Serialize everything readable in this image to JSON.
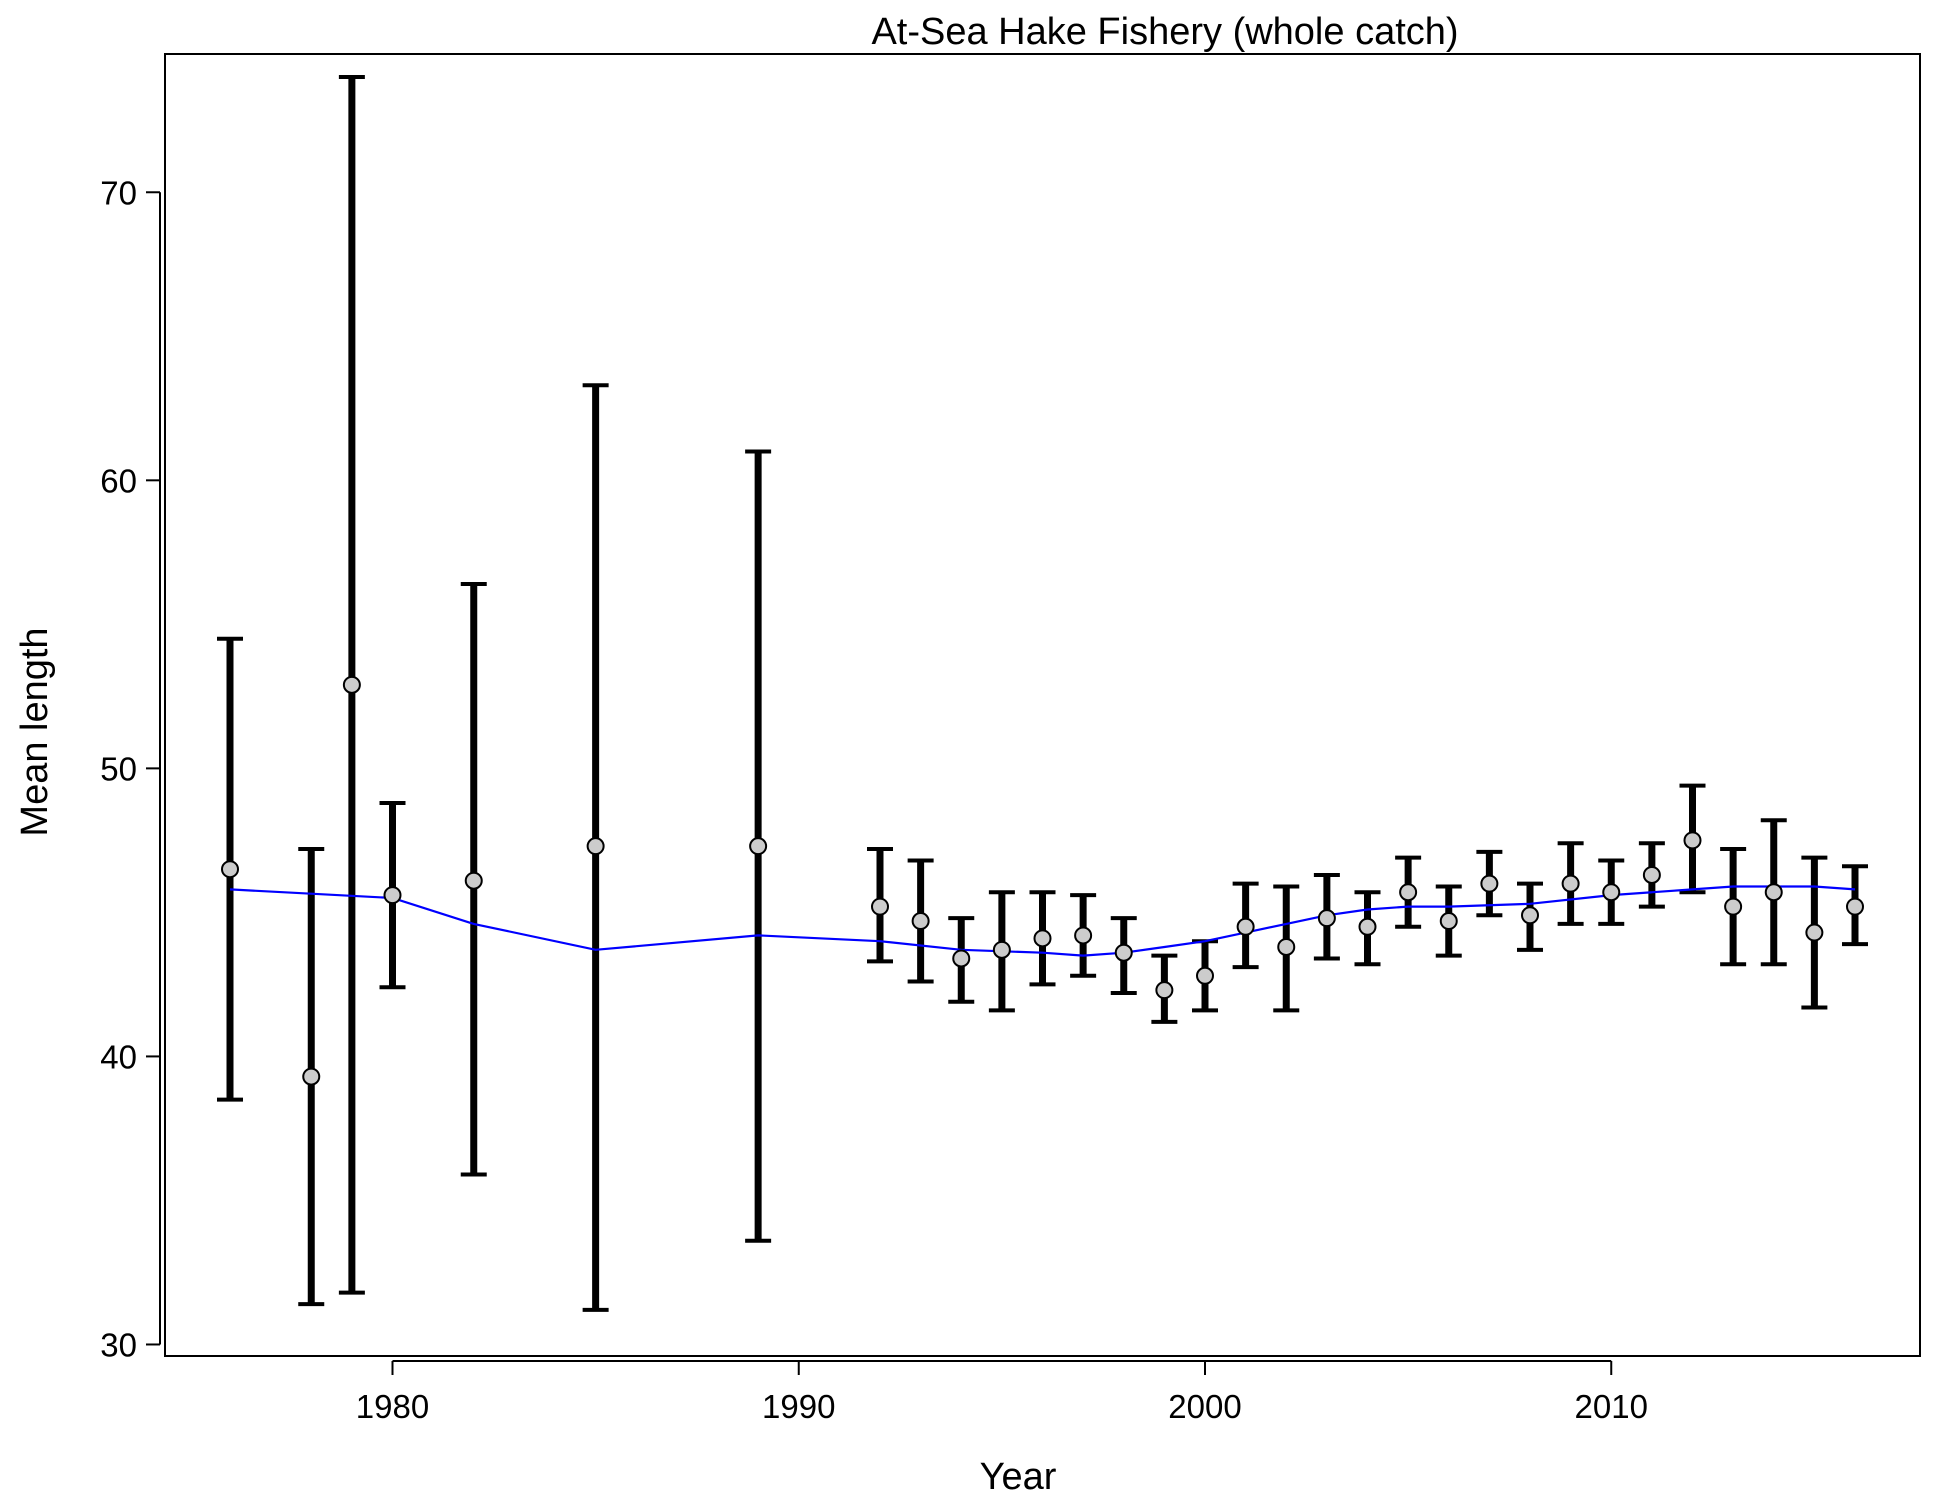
{
  "chart_data": {
    "type": "scatter",
    "title": "At-Sea Hake Fishery (whole catch)",
    "xlabel": "Year",
    "ylabel": "Mean length",
    "xlim": [
      1974.4,
      2017.6
    ],
    "ylim": [
      29.6,
      74.8
    ],
    "xticks": [
      1980,
      1990,
      2000,
      2010
    ],
    "yticks": [
      30,
      40,
      50,
      60,
      70
    ],
    "grid": false,
    "legend": "none",
    "colors": {
      "points": "#cccccc",
      "error_bars": "#000000",
      "fit_line": "#0000ff"
    },
    "series": [
      {
        "kind": "observed",
        "x": [
          1976,
          1978,
          1979,
          1980,
          1982,
          1985,
          1989,
          1992,
          1993,
          1994,
          1995,
          1996,
          1997,
          1998,
          1999,
          2000,
          2001,
          2002,
          2003,
          2004,
          2005,
          2006,
          2007,
          2008,
          2009,
          2010,
          2011,
          2012,
          2013,
          2014,
          2015,
          2016
        ],
        "y": [
          46.5,
          39.3,
          52.9,
          45.6,
          46.1,
          47.3,
          47.3,
          45.2,
          44.7,
          43.4,
          43.7,
          44.1,
          44.2,
          43.6,
          42.3,
          42.8,
          44.5,
          43.8,
          44.8,
          44.5,
          45.7,
          44.7,
          46.0,
          44.9,
          46.0,
          45.7,
          46.3,
          47.5,
          45.2,
          45.7,
          44.3,
          45.2
        ],
        "lower": [
          38.5,
          31.4,
          31.8,
          42.4,
          35.9,
          31.2,
          33.6,
          43.3,
          42.6,
          41.9,
          41.6,
          42.5,
          42.8,
          42.2,
          41.2,
          41.6,
          43.1,
          41.6,
          43.4,
          43.2,
          44.5,
          43.5,
          44.9,
          43.7,
          44.6,
          44.6,
          45.2,
          45.7,
          43.2,
          43.2,
          41.7,
          43.9
        ],
        "upper": [
          54.5,
          47.2,
          74.0,
          48.8,
          56.4,
          63.3,
          61.0,
          47.2,
          46.8,
          44.8,
          45.7,
          45.7,
          45.6,
          44.8,
          43.5,
          44.0,
          46.0,
          45.9,
          46.3,
          45.7,
          46.9,
          45.9,
          47.1,
          46.0,
          47.4,
          46.8,
          47.4,
          49.4,
          47.2,
          48.2,
          46.9,
          46.6
        ]
      },
      {
        "kind": "expected",
        "x": [
          1976,
          1980,
          1982,
          1985,
          1989,
          1992,
          1994,
          1996,
          1997,
          1998,
          1999,
          2000,
          2001,
          2002,
          2003,
          2004,
          2005,
          2006,
          2008,
          2010,
          2012,
          2013,
          2014,
          2015,
          2016
        ],
        "y": [
          45.8,
          45.5,
          44.6,
          43.7,
          44.2,
          44.0,
          43.7,
          43.6,
          43.5,
          43.6,
          43.8,
          44.0,
          44.3,
          44.6,
          44.9,
          45.1,
          45.2,
          45.2,
          45.3,
          45.6,
          45.8,
          45.9,
          45.9,
          45.9,
          45.8
        ]
      }
    ]
  }
}
